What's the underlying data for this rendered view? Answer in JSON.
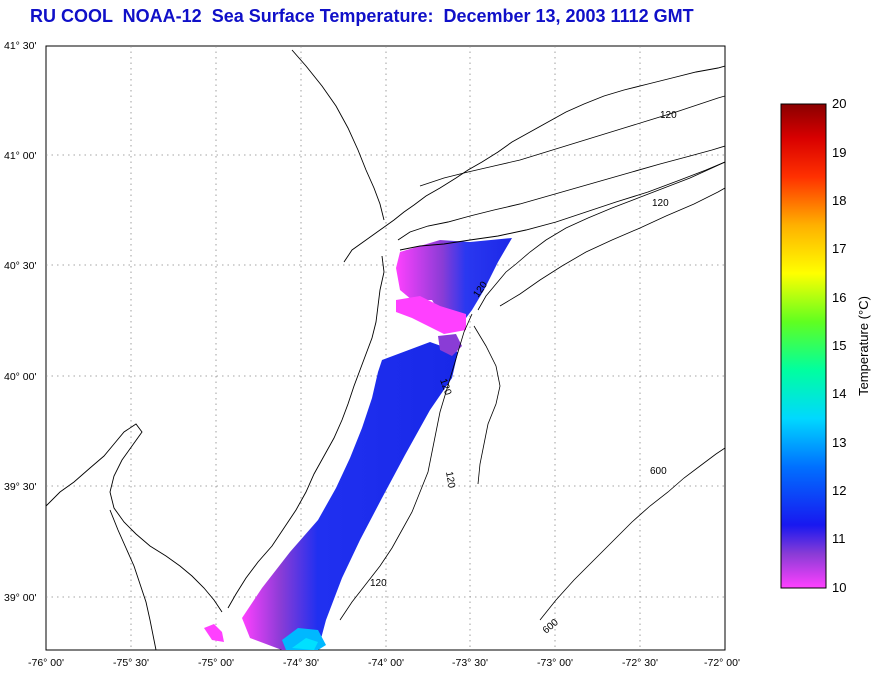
{
  "title": "RU COOL  NOAA-12  Sea Surface Temperature:  December 13, 2003 1112 GMT",
  "map": {
    "lat_labels": [
      "41° 30'",
      "41° 00'",
      "40° 30'",
      "40° 00'",
      "39° 30'",
      "39° 00'"
    ],
    "lon_labels": [
      "-76° 00'",
      "-75° 30'",
      "-75° 00'",
      "-74° 30'",
      "-74° 00'",
      "-73° 30'",
      "-73° 00'",
      "-72° 30'",
      "-72° 00'"
    ],
    "lat_range": [
      38.75,
      41.5
    ],
    "lon_range": [
      -76.0,
      -72.0
    ],
    "grid": true,
    "contour_labels": [
      "120",
      "120",
      "120",
      "120",
      "120",
      "120",
      "600",
      "600"
    ]
  },
  "colorbar": {
    "label": "Temperature (°C)",
    "ticks": [
      "20",
      "19",
      "18",
      "17",
      "16",
      "15",
      "14",
      "13",
      "12",
      "11",
      "10"
    ],
    "range": [
      10,
      20
    ],
    "colors": [
      "#ff40ff",
      "#8a3cd6",
      "#1010f0",
      "#0060ff",
      "#00c8ff",
      "#00ffb0",
      "#60ff20",
      "#ffff00",
      "#ffb000",
      "#ff4000",
      "#e00000",
      "#900000"
    ]
  },
  "chart_data": {
    "type": "heatmap",
    "title": "RU COOL  NOAA-12  Sea Surface Temperature:  December 13, 2003 1112 GMT",
    "xlabel": "",
    "ylabel": "",
    "colorbar_label": "Temperature (°C)",
    "x_range": [
      -76.0,
      -72.0
    ],
    "y_range": [
      38.75,
      41.5
    ],
    "value_range": [
      10,
      20
    ],
    "observed_range": [
      10,
      12.5
    ]
  }
}
